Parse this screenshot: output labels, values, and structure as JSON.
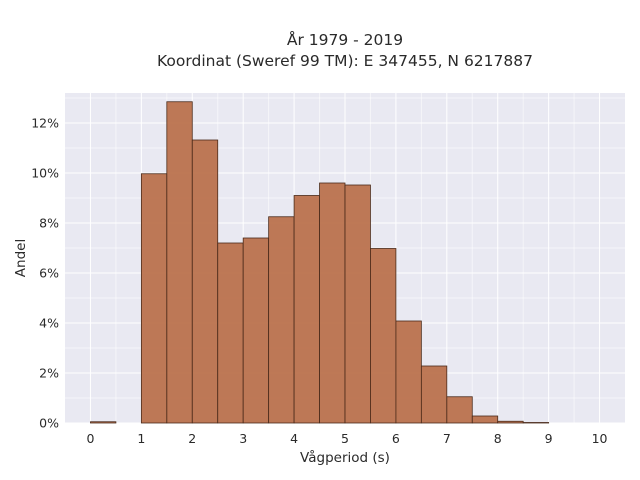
{
  "chart_data": {
    "type": "bar",
    "title_line1": "År 1979 - 2019",
    "title_line2": "Koordinat (Sweref 99 TM): E 347455, N 6217887",
    "xlabel": "Vågperiod (s)",
    "ylabel": "Andel",
    "xlim": [
      -0.5,
      10.5
    ],
    "ylim": [
      0,
      13.2
    ],
    "x_ticks": [
      0,
      1,
      2,
      3,
      4,
      5,
      6,
      7,
      8,
      9,
      10
    ],
    "y_ticks": [
      0,
      2,
      4,
      6,
      8,
      10,
      12
    ],
    "y_tick_suffix": "%",
    "grid": true,
    "bin_width": 0.5,
    "bins": [
      {
        "start": 0.0,
        "value": 0.05
      },
      {
        "start": 1.0,
        "value": 9.97
      },
      {
        "start": 1.5,
        "value": 12.85
      },
      {
        "start": 2.0,
        "value": 11.32
      },
      {
        "start": 2.5,
        "value": 7.2
      },
      {
        "start": 3.0,
        "value": 7.4
      },
      {
        "start": 3.5,
        "value": 8.25
      },
      {
        "start": 4.0,
        "value": 9.1
      },
      {
        "start": 4.5,
        "value": 9.6
      },
      {
        "start": 5.0,
        "value": 9.52
      },
      {
        "start": 5.5,
        "value": 6.98
      },
      {
        "start": 6.0,
        "value": 4.08
      },
      {
        "start": 6.5,
        "value": 2.28
      },
      {
        "start": 7.0,
        "value": 1.05
      },
      {
        "start": 7.5,
        "value": 0.28
      },
      {
        "start": 8.0,
        "value": 0.07
      },
      {
        "start": 8.5,
        "value": 0.02
      }
    ],
    "colors": {
      "bar": "#b86b45",
      "bar_edge": "#4a2a1a",
      "plot_bg": "#e9e9f2",
      "grid": "#ffffff"
    }
  }
}
